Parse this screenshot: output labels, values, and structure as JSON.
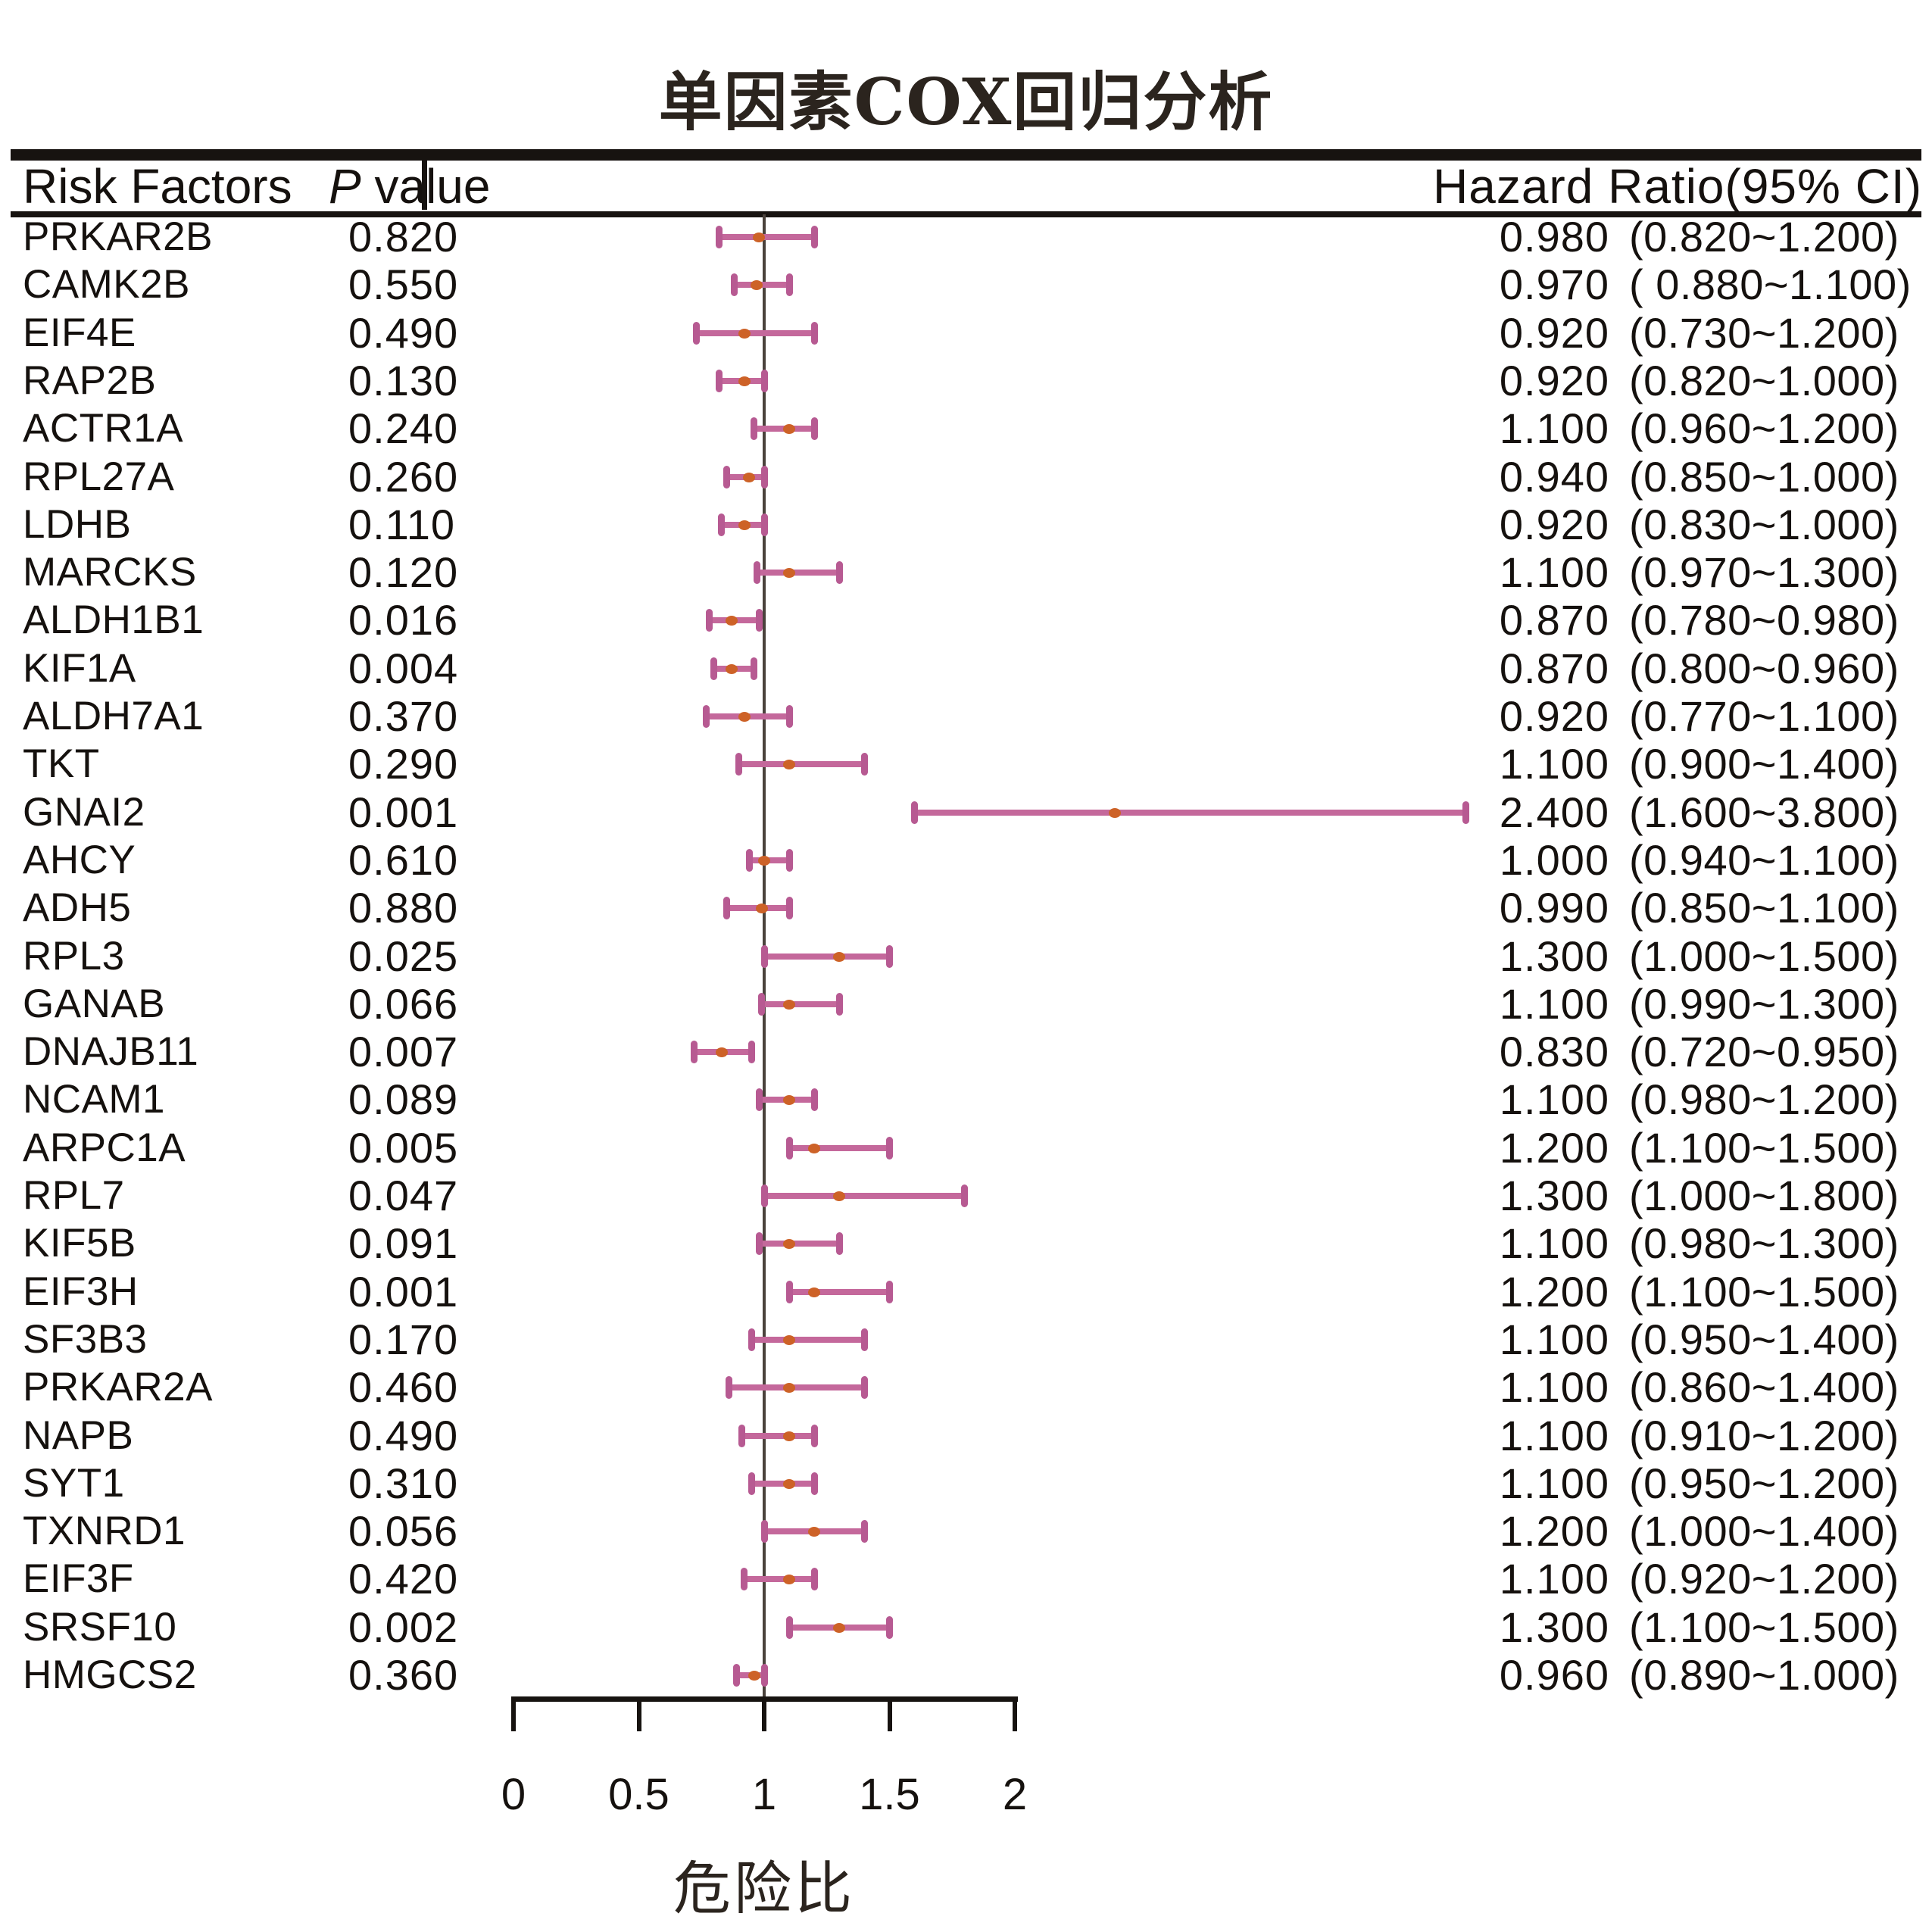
{
  "title": "单因素COX回归分析",
  "columns": {
    "risk_factors": "Risk Factors",
    "p_value_prefix": "P",
    "p_value_suffix": " value",
    "hazard_ratio": "Hazard Ratio(95% CI)"
  },
  "x_axis": {
    "label": "危险比",
    "min": 0,
    "max": 2,
    "reference_line": 1,
    "ticks": [
      {
        "value": 0,
        "label": "0"
      },
      {
        "value": 0.5,
        "label": "0.5"
      },
      {
        "value": 1,
        "label": "1"
      },
      {
        "value": 1.5,
        "label": "1.5"
      },
      {
        "value": 2,
        "label": "2"
      }
    ]
  },
  "colors": {
    "ci_bar": "#c4689b",
    "ci_cap": "#b75a92",
    "point": "#cd6227",
    "reference_line": "#4a423c",
    "rule": "#171310",
    "text": "#15110e"
  },
  "chart_data": {
    "type": "scatter",
    "variant": "forest-plot",
    "title": "单因素COX回归分析",
    "xlabel": "危险比",
    "xlim": [
      0,
      2
    ],
    "reference_line": 1,
    "legend": null,
    "grid": false,
    "rows": [
      {
        "risk_factor": "PRKAR2B",
        "p_value": "0.820",
        "hr_text": "0.980",
        "ci_text": "(0.820~1.200)",
        "hr": 0.98,
        "ci_low": 0.82,
        "ci_high": 1.2
      },
      {
        "risk_factor": "CAMK2B",
        "p_value": "0.550",
        "hr_text": "0.970",
        "ci_text": "( 0.880~1.100)",
        "hr": 0.97,
        "ci_low": 0.88,
        "ci_high": 1.1
      },
      {
        "risk_factor": "EIF4E",
        "p_value": "0.490",
        "hr_text": "0.920",
        "ci_text": "(0.730~1.200)",
        "hr": 0.92,
        "ci_low": 0.73,
        "ci_high": 1.2
      },
      {
        "risk_factor": "RAP2B",
        "p_value": "0.130",
        "hr_text": "0.920",
        "ci_text": "(0.820~1.000)",
        "hr": 0.92,
        "ci_low": 0.82,
        "ci_high": 1.0
      },
      {
        "risk_factor": "ACTR1A",
        "p_value": "0.240",
        "hr_text": "1.100",
        "ci_text": "(0.960~1.200)",
        "hr": 1.1,
        "ci_low": 0.96,
        "ci_high": 1.2
      },
      {
        "risk_factor": "RPL27A",
        "p_value": "0.260",
        "hr_text": "0.940",
        "ci_text": "(0.850~1.000)",
        "hr": 0.94,
        "ci_low": 0.85,
        "ci_high": 1.0
      },
      {
        "risk_factor": "LDHB",
        "p_value": "0.110",
        "hr_text": "0.920",
        "ci_text": "(0.830~1.000)",
        "hr": 0.92,
        "ci_low": 0.83,
        "ci_high": 1.0
      },
      {
        "risk_factor": "MARCKS",
        "p_value": "0.120",
        "hr_text": "1.100",
        "ci_text": "(0.970~1.300)",
        "hr": 1.1,
        "ci_low": 0.97,
        "ci_high": 1.3
      },
      {
        "risk_factor": "ALDH1B1",
        "p_value": "0.016",
        "hr_text": "0.870",
        "ci_text": "(0.780~0.980)",
        "hr": 0.87,
        "ci_low": 0.78,
        "ci_high": 0.98
      },
      {
        "risk_factor": "KIF1A",
        "p_value": "0.004",
        "hr_text": "0.870",
        "ci_text": "(0.800~0.960)",
        "hr": 0.87,
        "ci_low": 0.8,
        "ci_high": 0.96
      },
      {
        "risk_factor": "ALDH7A1",
        "p_value": "0.370",
        "hr_text": "0.920",
        "ci_text": "(0.770~1.100)",
        "hr": 0.92,
        "ci_low": 0.77,
        "ci_high": 1.1
      },
      {
        "risk_factor": "TKT",
        "p_value": "0.290",
        "hr_text": "1.100",
        "ci_text": "(0.900~1.400)",
        "hr": 1.1,
        "ci_low": 0.9,
        "ci_high": 1.4
      },
      {
        "risk_factor": "GNAI2",
        "p_value": "0.001",
        "hr_text": "2.400",
        "ci_text": "(1.600~3.800)",
        "hr": 2.4,
        "ci_low": 1.6,
        "ci_high": 3.8
      },
      {
        "risk_factor": "AHCY",
        "p_value": "0.610",
        "hr_text": "1.000",
        "ci_text": "(0.940~1.100)",
        "hr": 1.0,
        "ci_low": 0.94,
        "ci_high": 1.1
      },
      {
        "risk_factor": "ADH5",
        "p_value": "0.880",
        "hr_text": "0.990",
        "ci_text": "(0.850~1.100)",
        "hr": 0.99,
        "ci_low": 0.85,
        "ci_high": 1.1
      },
      {
        "risk_factor": "RPL3",
        "p_value": "0.025",
        "hr_text": "1.300",
        "ci_text": "(1.000~1.500)",
        "hr": 1.3,
        "ci_low": 1.0,
        "ci_high": 1.5
      },
      {
        "risk_factor": "GANAB",
        "p_value": "0.066",
        "hr_text": "1.100",
        "ci_text": "(0.990~1.300)",
        "hr": 1.1,
        "ci_low": 0.99,
        "ci_high": 1.3
      },
      {
        "risk_factor": "DNAJB11",
        "p_value": "0.007",
        "hr_text": "0.830",
        "ci_text": "(0.720~0.950)",
        "hr": 0.83,
        "ci_low": 0.72,
        "ci_high": 0.95
      },
      {
        "risk_factor": "NCAM1",
        "p_value": "0.089",
        "hr_text": "1.100",
        "ci_text": "(0.980~1.200)",
        "hr": 1.1,
        "ci_low": 0.98,
        "ci_high": 1.2
      },
      {
        "risk_factor": "ARPC1A",
        "p_value": "0.005",
        "hr_text": "1.200",
        "ci_text": "(1.100~1.500)",
        "hr": 1.2,
        "ci_low": 1.1,
        "ci_high": 1.5
      },
      {
        "risk_factor": "RPL7",
        "p_value": "0.047",
        "hr_text": "1.300",
        "ci_text": "(1.000~1.800)",
        "hr": 1.3,
        "ci_low": 1.0,
        "ci_high": 1.8
      },
      {
        "risk_factor": "KIF5B",
        "p_value": "0.091",
        "hr_text": "1.100",
        "ci_text": "(0.980~1.300)",
        "hr": 1.1,
        "ci_low": 0.98,
        "ci_high": 1.3
      },
      {
        "risk_factor": "EIF3H",
        "p_value": "0.001",
        "hr_text": "1.200",
        "ci_text": "(1.100~1.500)",
        "hr": 1.2,
        "ci_low": 1.1,
        "ci_high": 1.5
      },
      {
        "risk_factor": "SF3B3",
        "p_value": "0.170",
        "hr_text": "1.100",
        "ci_text": "(0.950~1.400)",
        "hr": 1.1,
        "ci_low": 0.95,
        "ci_high": 1.4
      },
      {
        "risk_factor": "PRKAR2A",
        "p_value": "0.460",
        "hr_text": "1.100",
        "ci_text": "(0.860~1.400)",
        "hr": 1.1,
        "ci_low": 0.86,
        "ci_high": 1.4
      },
      {
        "risk_factor": "NAPB",
        "p_value": "0.490",
        "hr_text": "1.100",
        "ci_text": "(0.910~1.200)",
        "hr": 1.1,
        "ci_low": 0.91,
        "ci_high": 1.2
      },
      {
        "risk_factor": "SYT1",
        "p_value": "0.310",
        "hr_text": "1.100",
        "ci_text": "(0.950~1.200)",
        "hr": 1.1,
        "ci_low": 0.95,
        "ci_high": 1.2
      },
      {
        "risk_factor": "TXNRD1",
        "p_value": "0.056",
        "hr_text": "1.200",
        "ci_text": "(1.000~1.400)",
        "hr": 1.2,
        "ci_low": 1.0,
        "ci_high": 1.4
      },
      {
        "risk_factor": "EIF3F",
        "p_value": "0.420",
        "hr_text": "1.100",
        "ci_text": "(0.920~1.200)",
        "hr": 1.1,
        "ci_low": 0.92,
        "ci_high": 1.2
      },
      {
        "risk_factor": "SRSF10",
        "p_value": "0.002",
        "hr_text": "1.300",
        "ci_text": "(1.100~1.500)",
        "hr": 1.3,
        "ci_low": 1.1,
        "ci_high": 1.5
      },
      {
        "risk_factor": "HMGCS2",
        "p_value": "0.360",
        "hr_text": "0.960",
        "ci_text": "(0.890~1.000)",
        "hr": 0.96,
        "ci_low": 0.89,
        "ci_high": 1.0
      }
    ]
  }
}
